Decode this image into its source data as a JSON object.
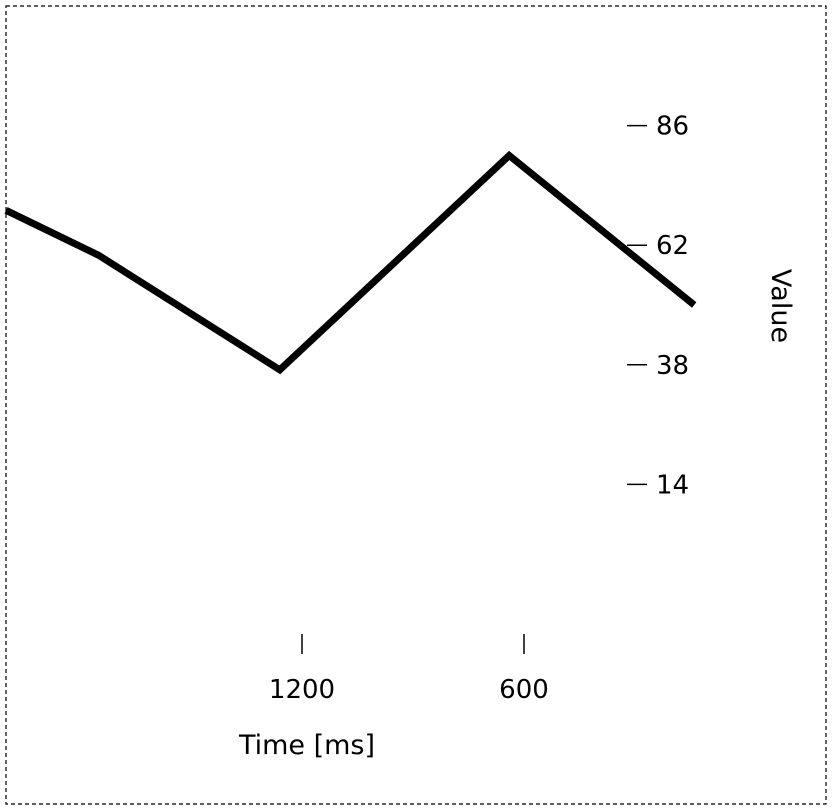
{
  "chart_data": {
    "type": "line",
    "xlabel": "Time [ms]",
    "ylabel": "Value",
    "x_axis": {
      "reversed": true,
      "range": [
        2000,
        200
      ],
      "ticks": [
        1200,
        600
      ],
      "tick_labels": [
        "1200",
        "600"
      ]
    },
    "y_axis": {
      "position": "right",
      "range": [
        -10,
        110
      ],
      "ticks": [
        86,
        62,
        38,
        14
      ],
      "tick_labels": [
        "86",
        "62",
        "38",
        "14"
      ]
    },
    "grid": false,
    "legend": "none",
    "series": [
      {
        "x": [
          2000,
          1750,
          1260,
          640,
          140
        ],
        "y": [
          69,
          60,
          37,
          80,
          50
        ]
      }
    ],
    "colors": {
      "line": "#000000",
      "frame": "#000000"
    }
  }
}
